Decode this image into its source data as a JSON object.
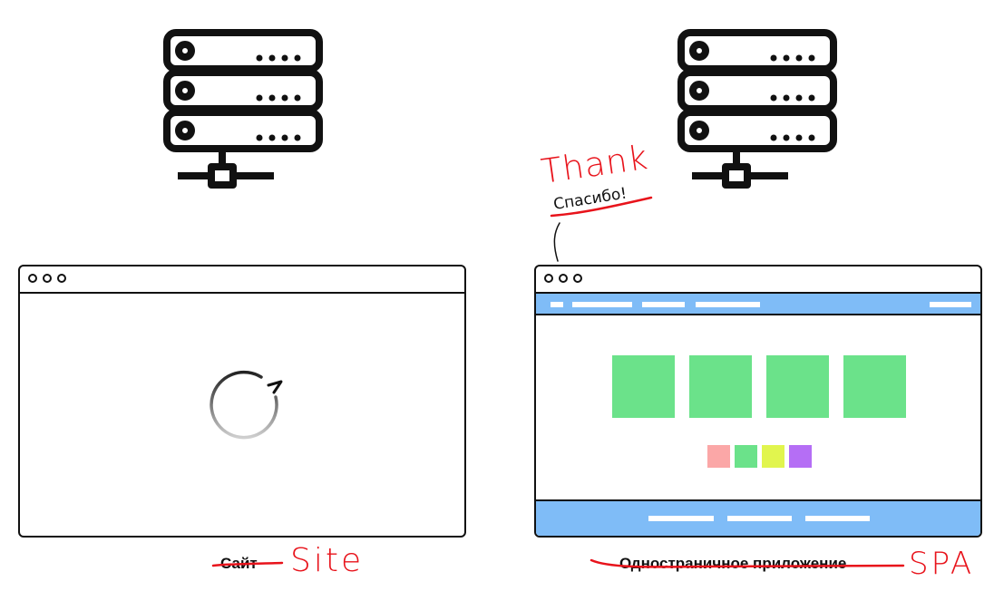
{
  "left_panel": {
    "caption": "Сайт",
    "handwritten": "Site"
  },
  "right_panel": {
    "caption": "Одностраничное приложение",
    "handwritten": "SPA",
    "bubble_text": "Спасибо!",
    "bubble_handwritten": "Thank"
  },
  "colors": {
    "accent_blue": "#7fbcf7",
    "tile_green": "#6be28a",
    "swatch_pink": "#fba7a7",
    "swatch_green": "#6be28a",
    "swatch_yellow": "#e1f54e",
    "swatch_purple": "#b56ef5",
    "handwriting_red": "#e8131b"
  },
  "icons": [
    "server-icon",
    "loading-spinner-icon",
    "window-control-dots"
  ]
}
